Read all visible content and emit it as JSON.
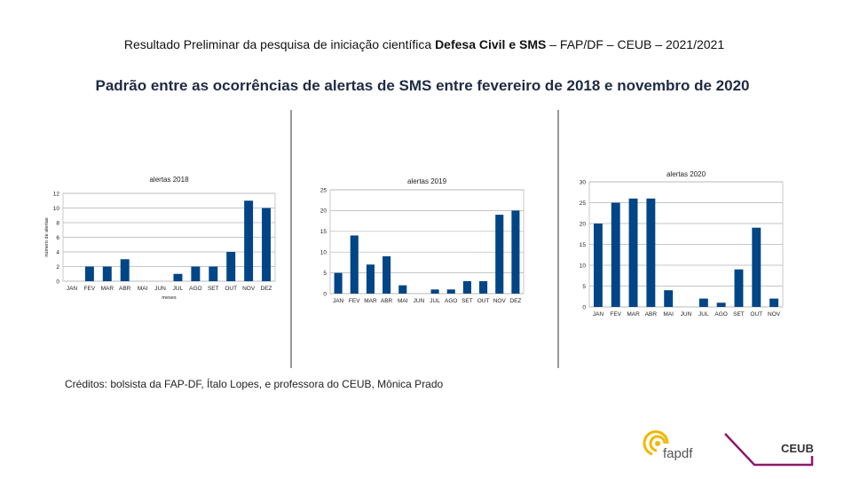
{
  "header": {
    "line": [
      "Resultado Preliminar da pesquisa de iniciação científica",
      "Defesa Civil e SMS",
      "– FAP/DF – CEUB – 2021/2021"
    ],
    "title": "Padrão entre as ocorrências de alertas de SMS entre fevereiro de 2018 e novembro de 2020"
  },
  "chart_data": [
    {
      "type": "bar",
      "title": "alertas 2018",
      "y_label": "número de alertas",
      "x_label": "meses",
      "categories": [
        "JAN",
        "FEV",
        "MAR",
        "ABR",
        "MAI",
        "JUN",
        "JUL",
        "AGO",
        "SET",
        "OUT",
        "NOV",
        "DEZ"
      ],
      "values": [
        0,
        2,
        2,
        3,
        0,
        0,
        1,
        2,
        2,
        4,
        11,
        10
      ],
      "color": "#004586",
      "ylim": [
        0,
        12
      ],
      "yticks": [
        0,
        2,
        4,
        6,
        8,
        10,
        12
      ],
      "grid": true
    },
    {
      "type": "bar",
      "title": "alertas 2019",
      "categories": [
        "JAN",
        "FEV",
        "MAR",
        "ABR",
        "MAI",
        "JUN",
        "JUL",
        "AGO",
        "SET",
        "OUT",
        "NOV",
        "DEZ"
      ],
      "values": [
        5,
        14,
        7,
        9,
        2,
        0,
        1,
        1,
        3,
        3,
        19,
        20
      ],
      "color": "#004586",
      "ylim": [
        0,
        25
      ],
      "yticks": [
        0,
        5,
        10,
        15,
        20,
        25
      ],
      "grid": true
    },
    {
      "type": "bar",
      "title": "alertas 2020",
      "categories": [
        "JAN",
        "FEV",
        "MAR",
        "ABR",
        "MAI",
        "JUN",
        "JUL",
        "AGO",
        "SET",
        "OUT",
        "NOV"
      ],
      "values": [
        20,
        25,
        26,
        26,
        4,
        0,
        2,
        1,
        9,
        19,
        2
      ],
      "color": "#004586",
      "ylim": [
        0,
        30
      ],
      "yticks": [
        0,
        5,
        10,
        15,
        20,
        25,
        30
      ],
      "grid": true
    }
  ],
  "credits": "Créditos: bolsista da FAP-DF, Ítalo Lopes, e professora do CEUB, Mônica Prado",
  "logos": [
    "fapdf",
    "CEUB"
  ]
}
